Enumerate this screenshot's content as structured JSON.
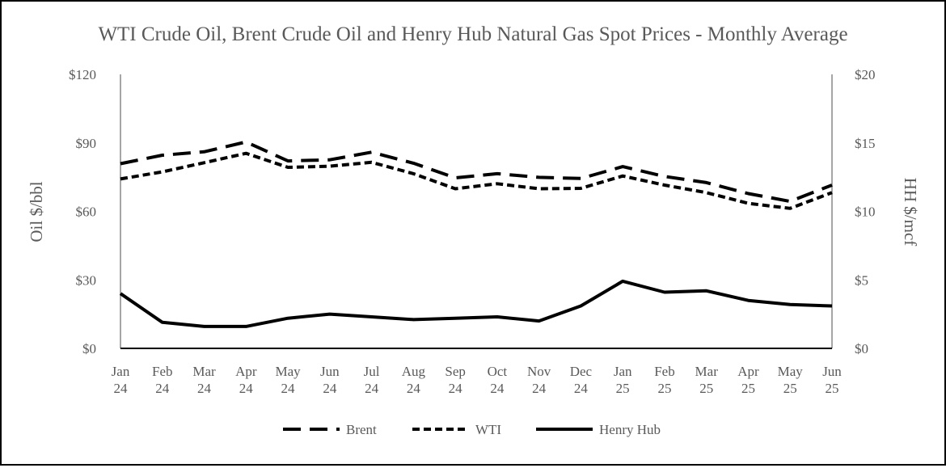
{
  "chart_data": {
    "type": "line",
    "title": "WTI Crude Oil, Brent Crude Oil and Henry Hub Natural Gas Spot Prices - Monthly Average",
    "categories": [
      [
        "Jan",
        "24"
      ],
      [
        "Feb",
        "24"
      ],
      [
        "Mar",
        "24"
      ],
      [
        "Apr",
        "24"
      ],
      [
        "May",
        "24"
      ],
      [
        "Jun",
        "24"
      ],
      [
        "Jul",
        "24"
      ],
      [
        "Aug",
        "24"
      ],
      [
        "Sep",
        "24"
      ],
      [
        "Oct",
        "24"
      ],
      [
        "Nov",
        "24"
      ],
      [
        "Dec",
        "24"
      ],
      [
        "Jan",
        "25"
      ],
      [
        "Feb",
        "25"
      ],
      [
        "Mar",
        "25"
      ],
      [
        "Apr",
        "25"
      ],
      [
        "May",
        "25"
      ],
      [
        "Jun",
        "25"
      ]
    ],
    "y_left": {
      "label": "Oil $/bbl",
      "ylim": [
        0,
        120
      ],
      "ticks": [
        0,
        30,
        60,
        90,
        120
      ],
      "tick_labels": [
        "$0",
        "$30",
        "$60",
        "$90",
        "$120"
      ]
    },
    "y_right": {
      "label": "HH $/mcf",
      "ylim": [
        0,
        20
      ],
      "ticks": [
        0,
        5,
        10,
        15,
        20
      ],
      "tick_labels": [
        "$0",
        "$5",
        "$10",
        "$15",
        "$20"
      ]
    },
    "series": [
      {
        "name": "Brent",
        "axis": "left",
        "dash": "long-dash",
        "color": "#000000",
        "values": [
          80.9,
          84.6,
          86.1,
          90.4,
          82.1,
          82.6,
          85.9,
          81.1,
          74.7,
          76.5,
          74.9,
          74.4,
          79.6,
          75.3,
          72.6,
          67.8,
          64.4,
          71.5
        ]
      },
      {
        "name": "WTI",
        "axis": "left",
        "dash": "short-dash",
        "color": "#000000",
        "values": [
          74.2,
          77.3,
          81.3,
          85.4,
          79.3,
          79.8,
          81.5,
          76.5,
          69.9,
          72.1,
          69.9,
          70.1,
          75.5,
          71.5,
          68.2,
          63.5,
          61.3,
          68.2
        ]
      },
      {
        "name": "Henry Hub",
        "axis": "right",
        "dash": "solid",
        "color": "#000000",
        "values": [
          4.0,
          1.9,
          1.6,
          1.6,
          2.2,
          2.5,
          2.3,
          2.1,
          2.2,
          2.3,
          2.0,
          3.1,
          4.9,
          4.1,
          4.2,
          3.5,
          3.2,
          3.1
        ]
      }
    ],
    "grid": false,
    "legend": "bottom",
    "axis_color": "#a6a6a6",
    "text_color": "#595959"
  }
}
